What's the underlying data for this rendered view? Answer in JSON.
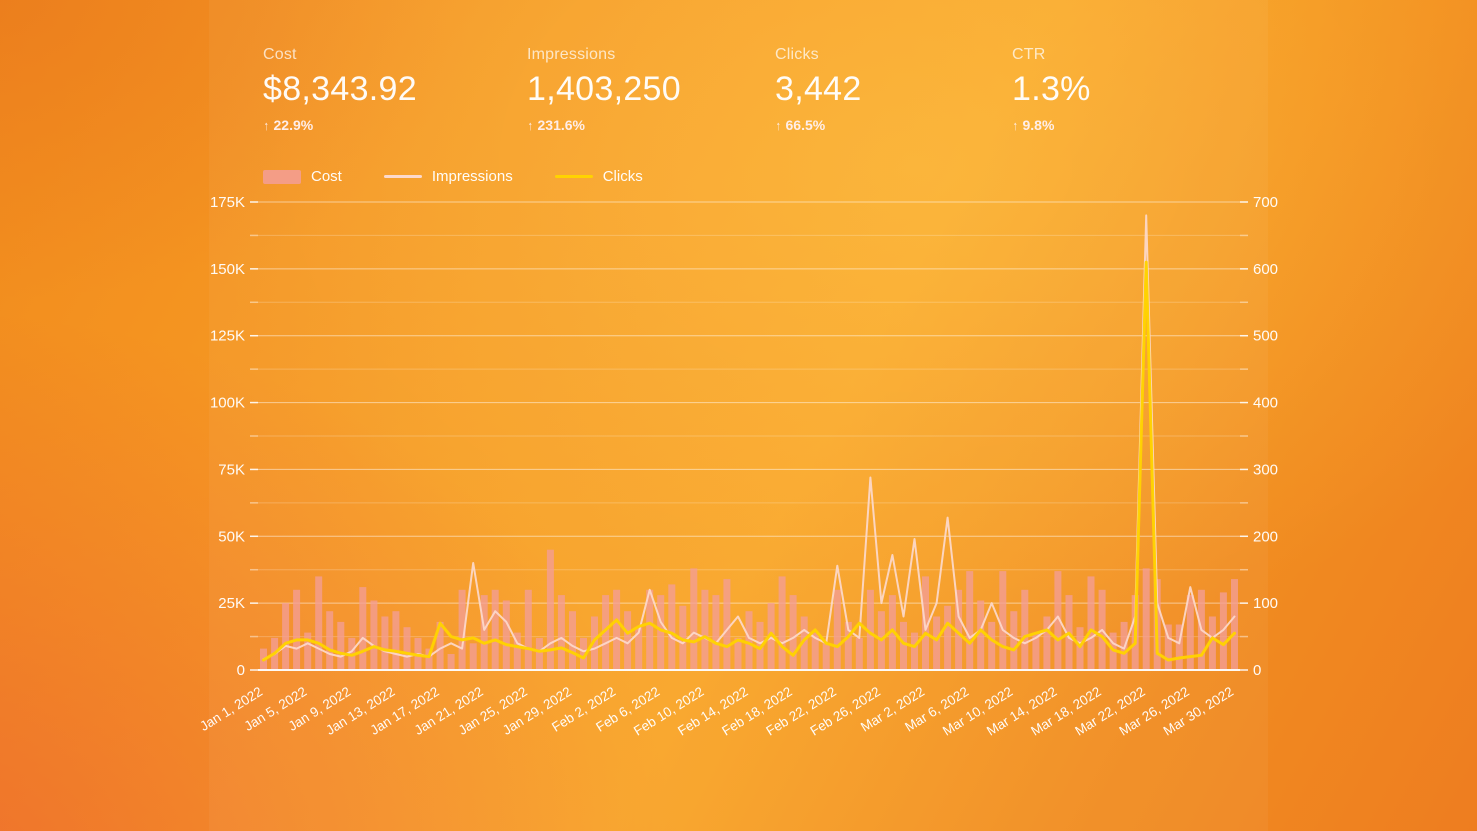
{
  "colors": {
    "cost_bar": "#f39d96",
    "impressions_line": "#fcd9cc",
    "clicks_line": "#ffd300",
    "grid_major": "rgba(255,255,255,0.50)",
    "grid_minor": "rgba(255,255,255,0.22)",
    "axis_text": "rgba(255,255,255,0.96)"
  },
  "icons": {
    "up_arrow": "↑"
  },
  "kpis": [
    {
      "label": "Cost",
      "value": "$8,343.92",
      "delta": "22.9%",
      "direction": "up"
    },
    {
      "label": "Impressions",
      "value": "1,403,250",
      "delta": "231.6%",
      "direction": "up"
    },
    {
      "label": "Clicks",
      "value": "3,442",
      "delta": "66.5%",
      "direction": "up"
    },
    {
      "label": "CTR",
      "value": "1.3%",
      "delta": "9.8%",
      "direction": "up"
    }
  ],
  "legend": [
    {
      "label": "Cost",
      "type": "bar",
      "color": "#f39d96"
    },
    {
      "label": "Impressions",
      "type": "line",
      "color": "#fcd9cc"
    },
    {
      "label": "Clicks",
      "type": "line",
      "color": "#ffd300"
    }
  ],
  "chart_data": {
    "type": "combo",
    "x_start": "Jan 1, 2022",
    "x_end": "Mar 30, 2022",
    "x_interval": "daily",
    "x_tick_labels": [
      "Jan 1, 2022",
      "Jan 5, 2022",
      "Jan 9, 2022",
      "Jan 13, 2022",
      "Jan 17, 2022",
      "Jan 21, 2022",
      "Jan 25, 2022",
      "Jan 29, 2022",
      "Feb 2, 2022",
      "Feb 6, 2022",
      "Feb 10, 2022",
      "Feb 14, 2022",
      "Feb 18, 2022",
      "Feb 22, 2022",
      "Feb 26, 2022",
      "Mar 2, 2022",
      "Mar 6, 2022",
      "Mar 10, 2022",
      "Mar 14, 2022",
      "Mar 18, 2022",
      "Mar 22, 2022",
      "Mar 26, 2022",
      "Mar 30, 2022"
    ],
    "x_tick_every_n_days": 4,
    "grid": true,
    "legend_position": "top",
    "left_axis": {
      "min": 0,
      "max": 175000,
      "tick_labels": [
        "0",
        "25K",
        "50K",
        "75K",
        "100K",
        "125K",
        "150K",
        "175K"
      ],
      "minor_step": 12500
    },
    "right_axis": {
      "min": 0,
      "max": 700,
      "tick_labels": [
        "0",
        "100",
        "200",
        "300",
        "400",
        "500",
        "600",
        "700"
      ]
    },
    "series": [
      {
        "name": "Cost",
        "type": "bar",
        "axis": "left",
        "color": "#f39d96",
        "values": [
          8000,
          12000,
          25000,
          30000,
          14000,
          35000,
          22000,
          18000,
          12000,
          31000,
          26000,
          20000,
          22000,
          16000,
          12000,
          8000,
          18000,
          6000,
          30000,
          10000,
          28000,
          30000,
          26000,
          14000,
          30000,
          12000,
          45000,
          28000,
          22000,
          12000,
          20000,
          28000,
          30000,
          22000,
          16000,
          30000,
          28000,
          32000,
          24000,
          38000,
          30000,
          28000,
          34000,
          12000,
          22000,
          18000,
          25000,
          35000,
          28000,
          20000,
          14000,
          10000,
          30000,
          18000,
          12000,
          30000,
          22000,
          28000,
          18000,
          14000,
          35000,
          20000,
          24000,
          30000,
          37000,
          26000,
          18000,
          37000,
          22000,
          30000,
          14000,
          20000,
          37000,
          28000,
          16000,
          35000,
          30000,
          14000,
          18000,
          28000,
          38000,
          34000,
          17000,
          17000,
          28000,
          30000,
          20000,
          29000,
          34000
        ]
      },
      {
        "name": "Impressions",
        "type": "line",
        "axis": "left",
        "color": "#fcd9cc",
        "values": [
          4000,
          6000,
          9000,
          8000,
          10000,
          8000,
          6000,
          5000,
          7000,
          12000,
          9000,
          7000,
          6000,
          5000,
          6000,
          5000,
          8000,
          10000,
          8000,
          40000,
          15000,
          22000,
          18000,
          10000,
          8000,
          7000,
          10000,
          12000,
          9000,
          7000,
          8000,
          10000,
          12000,
          10000,
          14000,
          30000,
          18000,
          12000,
          10000,
          14000,
          12000,
          10000,
          15000,
          20000,
          12000,
          10000,
          12000,
          10000,
          12000,
          15000,
          12000,
          10000,
          39000,
          15000,
          12000,
          72000,
          25000,
          43000,
          20000,
          49000,
          15000,
          25000,
          57000,
          20000,
          12000,
          15000,
          25000,
          15000,
          12000,
          10000,
          12000,
          15000,
          20000,
          12000,
          10000,
          12000,
          15000,
          10000,
          8000,
          20000,
          170000,
          25000,
          12000,
          10000,
          31000,
          15000,
          12000,
          15000,
          20000
        ]
      },
      {
        "name": "Clicks",
        "type": "line",
        "axis": "right",
        "color": "#ffd300",
        "values": [
          15,
          25,
          40,
          45,
          45,
          40,
          30,
          25,
          22,
          28,
          35,
          30,
          28,
          25,
          22,
          20,
          70,
          50,
          45,
          48,
          40,
          45,
          38,
          35,
          32,
          28,
          30,
          33,
          26,
          18,
          45,
          60,
          75,
          55,
          65,
          70,
          60,
          55,
          45,
          42,
          50,
          40,
          35,
          45,
          40,
          32,
          55,
          35,
          22,
          45,
          60,
          40,
          35,
          50,
          70,
          55,
          45,
          60,
          40,
          35,
          55,
          45,
          70,
          55,
          40,
          60,
          45,
          35,
          30,
          50,
          55,
          60,
          45,
          55,
          35,
          60,
          50,
          30,
          25,
          40,
          610,
          25,
          15,
          18,
          20,
          22,
          48,
          38,
          55
        ]
      }
    ]
  }
}
